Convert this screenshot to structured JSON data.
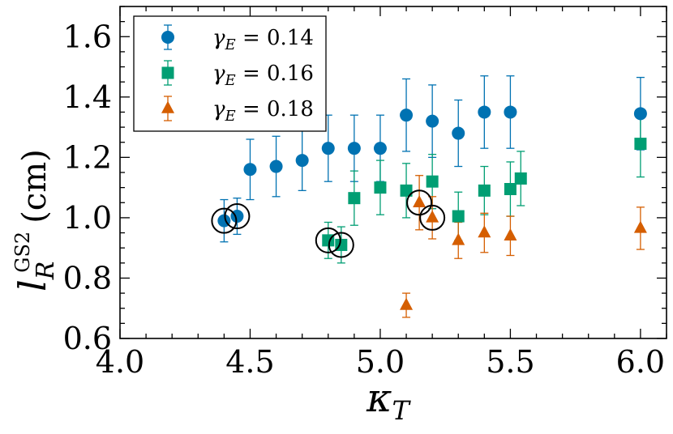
{
  "chart_data": {
    "type": "scatter",
    "title": "",
    "xlabel": {
      "symbol": "κ",
      "sub": "T"
    },
    "ylabel": {
      "symbol": "l",
      "sub": "R",
      "sup": "GS2",
      "unit": "(cm)"
    },
    "xlim": [
      4.0,
      6.1
    ],
    "ylim": [
      0.6,
      1.7
    ],
    "xticks": [
      "4.0",
      "4.5",
      "5.0",
      "5.5",
      "6.0"
    ],
    "yticks": [
      "0.6",
      "0.8",
      "1.0",
      "1.2",
      "1.4",
      "1.6"
    ],
    "legend_position": "top-left",
    "series": [
      {
        "name": "γE = 0.14",
        "label_main": "γ",
        "label_sub": "E",
        "label_rest": " = 0.14",
        "marker": "circle",
        "color": "#0072B2",
        "x": [
          4.4,
          4.45,
          4.5,
          4.6,
          4.7,
          4.8,
          4.9,
          5.0,
          5.1,
          5.2,
          5.3,
          5.4,
          5.5,
          6.0
        ],
        "y": [
          0.99,
          1.005,
          1.16,
          1.17,
          1.19,
          1.23,
          1.23,
          1.23,
          1.34,
          1.32,
          1.28,
          1.35,
          1.35,
          1.345
        ],
        "err": [
          0.07,
          0.06,
          0.1,
          0.1,
          0.1,
          0.11,
          0.11,
          0.11,
          0.12,
          0.12,
          0.11,
          0.12,
          0.12,
          0.12
        ]
      },
      {
        "name": "γE = 0.16",
        "label_main": "γ",
        "label_sub": "E",
        "label_rest": " = 0.16",
        "marker": "square",
        "color": "#009E73",
        "x": [
          4.8,
          4.85,
          4.9,
          5.0,
          5.1,
          5.2,
          5.3,
          5.4,
          5.5,
          5.54,
          6.0
        ],
        "y": [
          0.925,
          0.91,
          1.065,
          1.1,
          1.09,
          1.12,
          1.005,
          1.09,
          1.095,
          1.13,
          1.245
        ],
        "err": [
          0.06,
          0.06,
          0.09,
          0.09,
          0.09,
          0.09,
          0.08,
          0.08,
          0.09,
          0.09,
          0.11
        ]
      },
      {
        "name": "γE = 0.18",
        "label_main": "γ",
        "label_sub": "E",
        "label_rest": " = 0.18",
        "marker": "triangle",
        "color": "#D55E00",
        "x": [
          5.1,
          5.15,
          5.2,
          5.3,
          5.4,
          5.5,
          6.0
        ],
        "y": [
          0.71,
          1.05,
          1.0,
          0.925,
          0.95,
          0.94,
          0.965
        ],
        "err": [
          0.04,
          0.09,
          0.07,
          0.06,
          0.065,
          0.065,
          0.07
        ]
      }
    ],
    "highlighted_points": [
      {
        "x": 4.4,
        "y": 0.99
      },
      {
        "x": 4.45,
        "y": 1.005
      },
      {
        "x": 4.8,
        "y": 0.925
      },
      {
        "x": 4.85,
        "y": 0.91
      },
      {
        "x": 5.15,
        "y": 1.05
      },
      {
        "x": 5.2,
        "y": 1.0
      }
    ]
  }
}
